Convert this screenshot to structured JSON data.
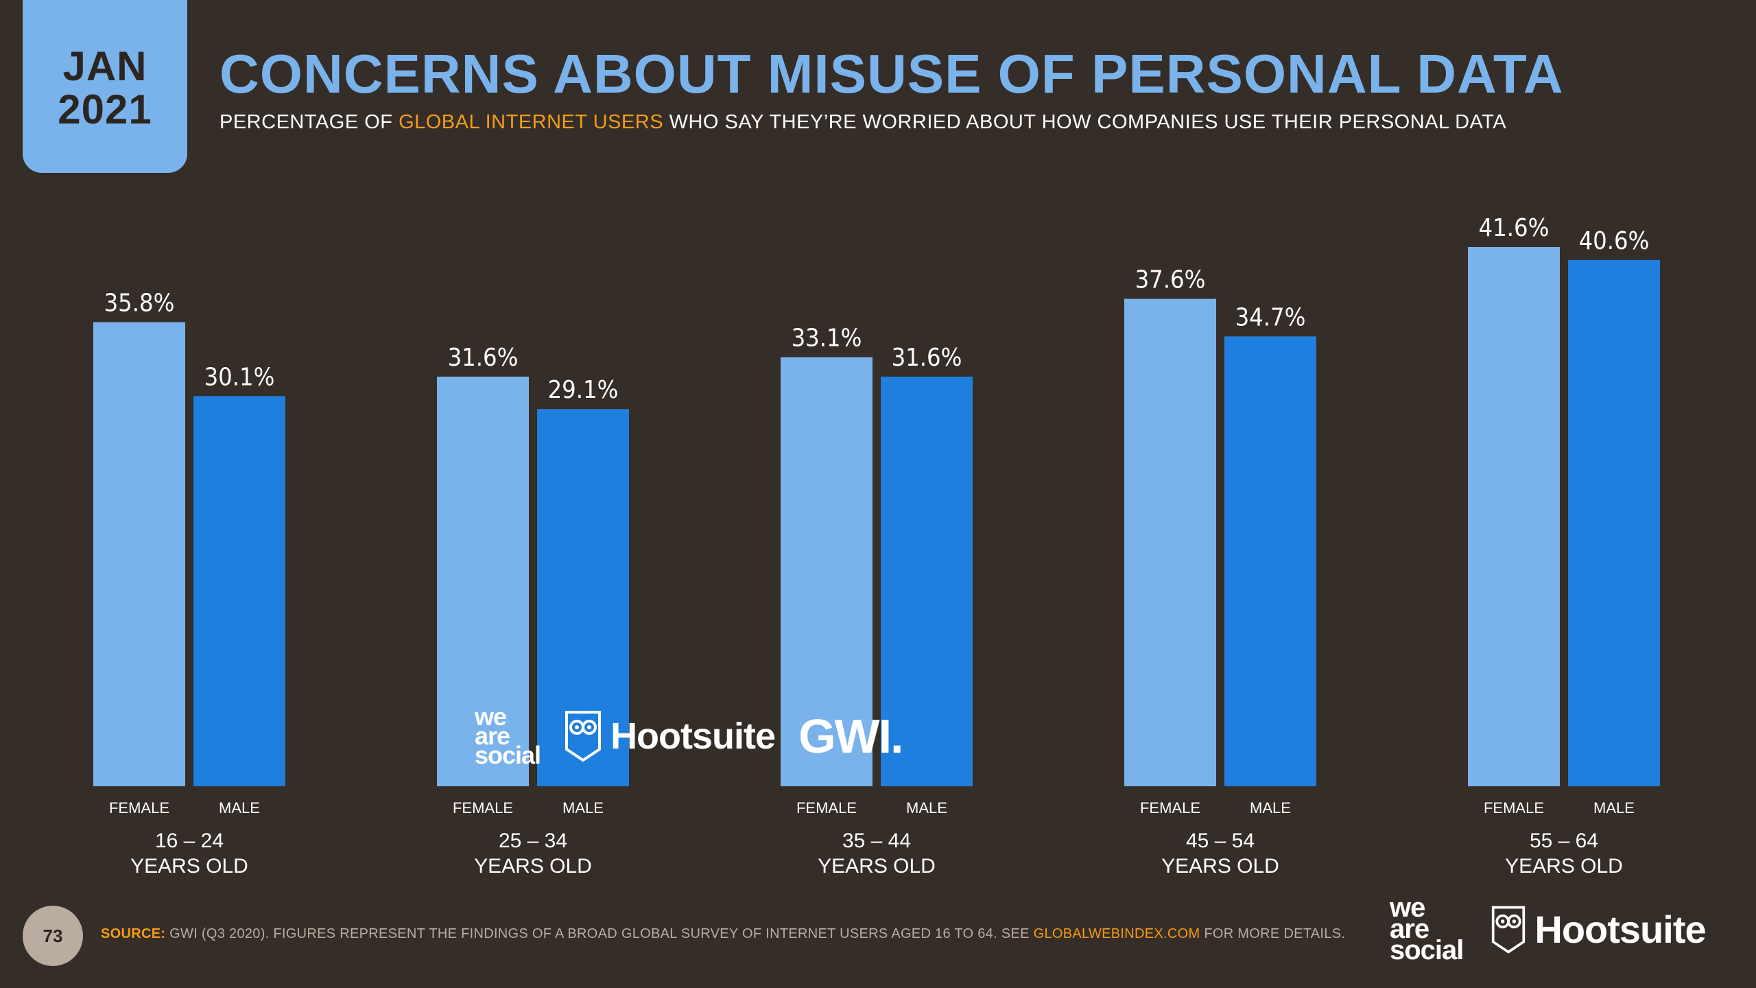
{
  "badge": {
    "month": "JAN",
    "year": "2021"
  },
  "title": "CONCERNS ABOUT MISUSE OF PERSONAL DATA",
  "subtitle": {
    "prefix": "PERCENTAGE OF ",
    "highlight": "GLOBAL INTERNET USERS",
    "suffix": " WHO SAY THEY’RE WORRIED ABOUT HOW COMPANIES USE THEIR PERSONAL DATA"
  },
  "colors": {
    "background": "#352d28",
    "female": "#7ab3ec",
    "male": "#1f7fde",
    "accent": "#f39c1a",
    "title": "#7ab3ec"
  },
  "chart_data": {
    "type": "bar",
    "title": "CONCERNS ABOUT MISUSE OF PERSONAL DATA",
    "categories": [
      "16 – 24",
      "25 – 34",
      "35 – 44",
      "45 – 54",
      "55 – 64"
    ],
    "category_suffix": "YEARS OLD",
    "series": [
      {
        "name": "FEMALE",
        "values": [
          35.8,
          31.6,
          33.1,
          37.6,
          41.6
        ],
        "labels": [
          "35.8%",
          "31.6%",
          "33.1%",
          "37.6%",
          "41.6%"
        ]
      },
      {
        "name": "MALE",
        "values": [
          30.1,
          29.1,
          31.6,
          34.7,
          40.6
        ],
        "labels": [
          "30.1%",
          "29.1%",
          "31.6%",
          "34.7%",
          "40.6%"
        ]
      }
    ],
    "ylim": [
      0,
      41.6
    ],
    "xlabel": "",
    "ylabel": "",
    "grid": false
  },
  "logos": {
    "we_are_social": [
      "we",
      "are",
      "social"
    ],
    "hootsuite": "Hootsuite",
    "gwi": "GWI."
  },
  "footer": {
    "page_number": "73",
    "source_label": "SOURCE:",
    "source_text": " GWI (Q3 2020). FIGURES REPRESENT THE FINDINGS OF A BROAD GLOBAL SURVEY OF INTERNET USERS AGED 16 TO 64. SEE ",
    "source_link": "GLOBALWEBINDEX.COM",
    "source_suffix": " FOR MORE DETAILS."
  }
}
